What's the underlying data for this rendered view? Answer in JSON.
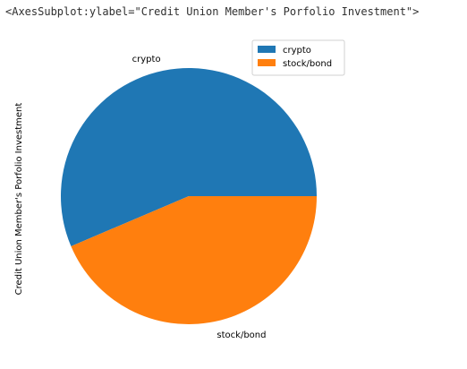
{
  "output_repr": "<AxesSubplot:ylabel=\"Credit Union Member's Porfolio Investment\">",
  "chart_data": {
    "type": "pie",
    "ylabel": "Credit Union Member's Porfolio Investment",
    "legend_position": "top-right",
    "slices": [
      {
        "label": "crypto",
        "value": 56.4,
        "color": "#1f77b4"
      },
      {
        "label": "stock/bond",
        "value": 43.6,
        "color": "#ff7f0e"
      }
    ],
    "start_angle_deg": 0,
    "direction": "counterclockwise"
  }
}
